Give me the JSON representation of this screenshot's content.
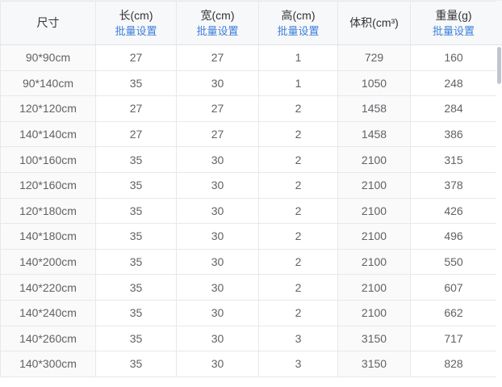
{
  "table": {
    "columns": [
      {
        "key": "size",
        "label": "尺寸"
      },
      {
        "key": "length",
        "label": "长(cm)",
        "batch_label": "批量设置"
      },
      {
        "key": "width",
        "label": "宽(cm)",
        "batch_label": "批量设置"
      },
      {
        "key": "height",
        "label": "高(cm)",
        "batch_label": "批量设置"
      },
      {
        "key": "volume",
        "label": "体积(cm³)"
      },
      {
        "key": "weight",
        "label": "重量(g)",
        "batch_label": "批量设置"
      }
    ],
    "rows": [
      [
        "90*90cm",
        "27",
        "27",
        "1",
        "729",
        "160"
      ],
      [
        "90*140cm",
        "35",
        "30",
        "1",
        "1050",
        "248"
      ],
      [
        "120*120cm",
        "27",
        "27",
        "2",
        "1458",
        "284"
      ],
      [
        "140*140cm",
        "27",
        "27",
        "2",
        "1458",
        "386"
      ],
      [
        "100*160cm",
        "35",
        "30",
        "2",
        "2100",
        "315"
      ],
      [
        "120*160cm",
        "35",
        "30",
        "2",
        "2100",
        "378"
      ],
      [
        "120*180cm",
        "35",
        "30",
        "2",
        "2100",
        "426"
      ],
      [
        "140*180cm",
        "35",
        "30",
        "2",
        "2100",
        "496"
      ],
      [
        "140*200cm",
        "35",
        "30",
        "2",
        "2100",
        "550"
      ],
      [
        "140*220cm",
        "35",
        "30",
        "2",
        "2100",
        "607"
      ],
      [
        "140*240cm",
        "35",
        "30",
        "2",
        "2100",
        "662"
      ],
      [
        "140*260cm",
        "35",
        "30",
        "3",
        "3150",
        "717"
      ],
      [
        "140*300cm",
        "35",
        "30",
        "3",
        "3150",
        "828"
      ]
    ]
  },
  "colors": {
    "header_bg": "#f7f8fa",
    "readonly_bg": "#fafafa",
    "border": "#e8e8e8",
    "link_blue": "#3d7fdb",
    "text_primary": "#333333",
    "text_body": "#5f6266",
    "scrollbar_thumb": "#c1c5cd"
  }
}
